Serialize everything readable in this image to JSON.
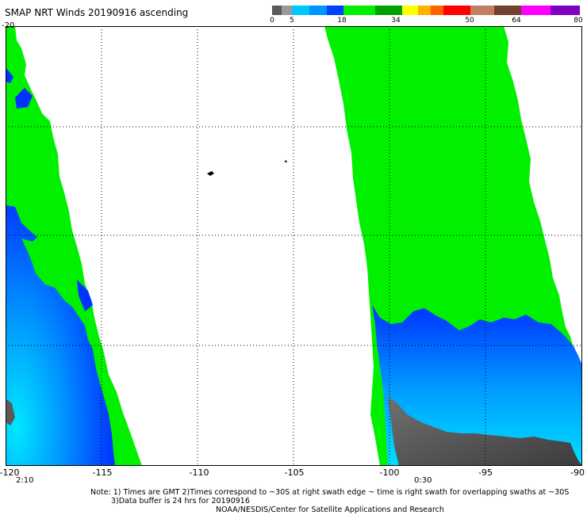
{
  "title": "SMAP NRT Winds 20190916 ascending",
  "colorbar": {
    "segments": [
      {
        "color": "#5a5a5a"
      },
      {
        "color": "#9a9a9a"
      },
      {
        "color": "#00c8ff"
      },
      {
        "color": "#0096ff"
      },
      {
        "color": "#0040ff"
      },
      {
        "color": "#00f000"
      },
      {
        "color": "#00a000"
      },
      {
        "color": "#ffff00"
      },
      {
        "color": "#ffb000"
      },
      {
        "color": "#ff6000"
      },
      {
        "color": "#ff0000"
      },
      {
        "color": "#c08060"
      },
      {
        "color": "#704030"
      },
      {
        "color": "#ff00ff"
      },
      {
        "color": "#8000c0"
      }
    ],
    "labels": [
      "0",
      "5",
      "18",
      "34",
      "50",
      "64",
      "80"
    ]
  },
  "map": {
    "lon_ticks": [
      "-120",
      "-115",
      "-110",
      "-105",
      "-100",
      "-95",
      "-90"
    ],
    "lat_ticks": [
      "-20"
    ],
    "lon_range": [
      -120,
      -90
    ],
    "grid": true,
    "colors": {
      "green": "#00f000",
      "blue": "#0032ff",
      "light_blue": "#00d2ff",
      "gray": "#5a5a5a"
    },
    "swaths": [
      {
        "time": "2:10"
      },
      {
        "time": "0:30"
      }
    ]
  },
  "notes": {
    "line1": "Note:  1) Times are GMT  2)Times correspond to ~30S at right swath edge ~ time is right swath for overlapping swaths at ~30S",
    "line2": "3)Data buffer is 24 hrs for 20190916",
    "credit": "NOAA/NESDIS/Center for Satellite Applications and Research"
  }
}
